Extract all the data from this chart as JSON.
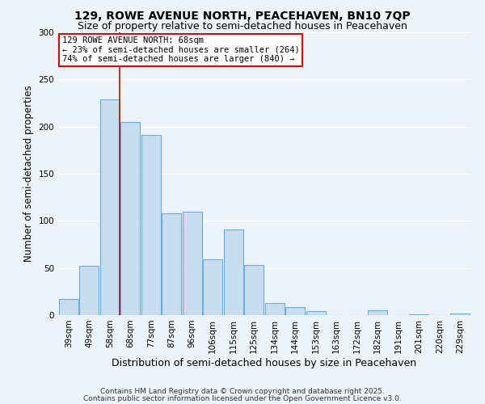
{
  "title1": "129, ROWE AVENUE NORTH, PEACEHAVEN, BN10 7QP",
  "title2": "Size of property relative to semi-detached houses in Peacehaven",
  "xlabel": "Distribution of semi-detached houses by size in Peacehaven",
  "ylabel": "Number of semi-detached properties",
  "categories": [
    "39sqm",
    "49sqm",
    "58sqm",
    "68sqm",
    "77sqm",
    "87sqm",
    "96sqm",
    "106sqm",
    "115sqm",
    "125sqm",
    "134sqm",
    "144sqm",
    "153sqm",
    "163sqm",
    "172sqm",
    "182sqm",
    "191sqm",
    "201sqm",
    "220sqm",
    "229sqm"
  ],
  "values": [
    17,
    52,
    229,
    205,
    191,
    108,
    110,
    59,
    91,
    53,
    13,
    9,
    4,
    0,
    0,
    5,
    0,
    1,
    0,
    2
  ],
  "bar_color": "#c9ddf0",
  "bar_edge_color": "#6aaedc",
  "highlight_bar_index": 2,
  "highlight_color": "#cc0000",
  "annotation_title": "129 ROWE AVENUE NORTH: 68sqm",
  "annotation_line1": "← 23% of semi-detached houses are smaller (264)",
  "annotation_line2": "74% of semi-detached houses are larger (840) →",
  "annotation_box_color": "#ffffff",
  "annotation_box_edge": "#cc0000",
  "ylim": [
    0,
    300
  ],
  "yticks": [
    0,
    50,
    100,
    150,
    200,
    250,
    300
  ],
  "footnote1": "Contains HM Land Registry data © Crown copyright and database right 2025.",
  "footnote2": "Contains public sector information licensed under the Open Government Licence v3.0.",
  "bg_color": "#eef2fb",
  "grid_color": "#ffffff",
  "title_fontsize": 10,
  "subtitle_fontsize": 9,
  "ann_fontsize": 7.5,
  "ylabel_fontsize": 8.5,
  "xlabel_fontsize": 9,
  "footnote_fontsize": 6.5,
  "tick_fontsize": 7.5
}
